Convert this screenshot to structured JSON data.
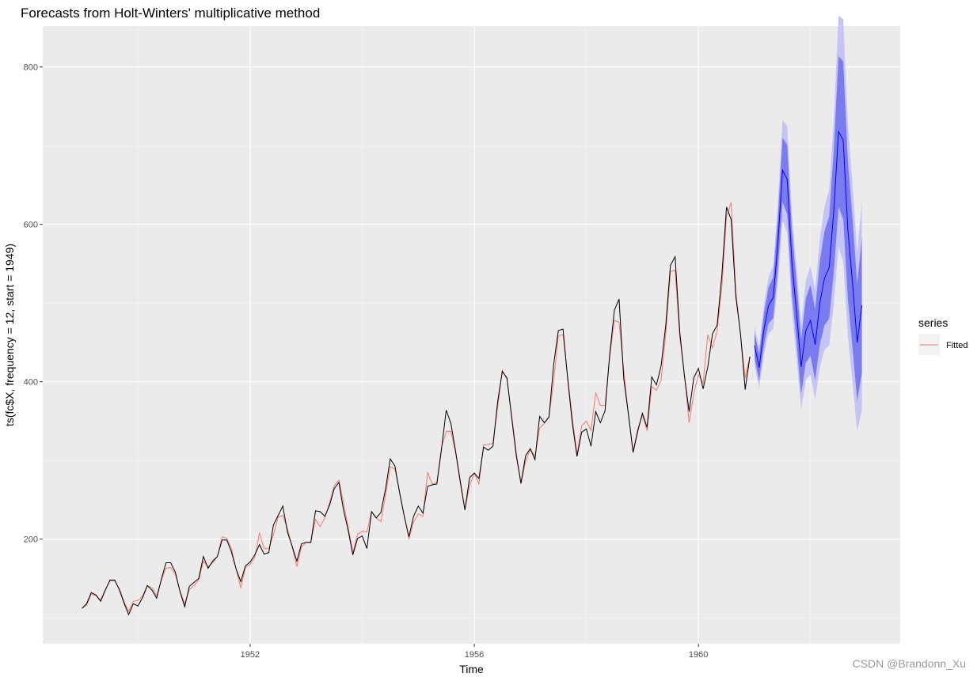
{
  "chart_data": {
    "type": "line",
    "title": "Forecasts from Holt-Winters' multiplicative method",
    "xlabel": "Time",
    "ylabel": "ts(fc$X, frequency = 12, start = 1949)",
    "xlim": [
      1948.3,
      1963.6
    ],
    "ylim": [
      67,
      852
    ],
    "x_ticks": [
      1952,
      1956,
      1960
    ],
    "y_ticks": [
      200,
      400,
      600,
      800
    ],
    "x_minor": [
      1950,
      1954,
      1958,
      1962
    ],
    "y_minor": [
      100,
      300,
      500,
      700
    ],
    "grid": true,
    "legend": {
      "title": "series",
      "position": "right",
      "entries": [
        "Fitted"
      ]
    },
    "observed": {
      "start": 1949,
      "frequency": 12,
      "color": "#000000",
      "values": [
        112,
        118,
        132,
        129,
        121,
        135,
        148,
        148,
        136,
        119,
        104,
        118,
        115,
        126,
        141,
        135,
        125,
        149,
        170,
        170,
        158,
        133,
        114,
        140,
        145,
        150,
        178,
        163,
        172,
        178,
        199,
        199,
        184,
        162,
        146,
        166,
        171,
        180,
        193,
        181,
        183,
        218,
        230,
        242,
        209,
        191,
        172,
        194,
        196,
        196,
        236,
        235,
        229,
        243,
        264,
        272,
        237,
        211,
        180,
        201,
        204,
        188,
        235,
        227,
        234,
        264,
        302,
        293,
        259,
        229,
        203,
        229,
        242,
        233,
        267,
        269,
        270,
        315,
        364,
        347,
        312,
        274,
        237,
        278,
        284,
        277,
        317,
        313,
        318,
        374,
        413,
        405,
        355,
        306,
        271,
        306,
        315,
        301,
        356,
        348,
        355,
        422,
        465,
        467,
        404,
        347,
        305,
        336,
        340,
        318,
        362,
        348,
        363,
        435,
        491,
        505,
        404,
        359,
        310,
        337,
        360,
        342,
        406,
        396,
        420,
        472,
        548,
        559,
        463,
        407,
        362,
        405,
        417,
        391,
        419,
        461,
        472,
        535,
        622,
        606,
        508,
        461,
        390,
        432
      ]
    },
    "fitted": {
      "name": "Fitted",
      "start": 1949,
      "frequency": 12,
      "color": "#f8766d",
      "values": [
        112,
        116,
        130,
        128,
        123,
        136,
        147,
        147,
        137,
        121,
        108,
        121,
        122,
        128,
        141,
        138,
        128,
        148,
        163,
        164,
        155,
        134,
        118,
        136,
        141,
        148,
        172,
        165,
        170,
        178,
        203,
        201,
        188,
        162,
        138,
        164,
        168,
        177,
        208,
        188,
        188,
        206,
        228,
        230,
        213,
        190,
        165,
        190,
        196,
        196,
        225,
        216,
        227,
        246,
        268,
        275,
        246,
        215,
        183,
        206,
        210,
        209,
        235,
        227,
        222,
        256,
        292,
        289,
        260,
        230,
        200,
        222,
        232,
        229,
        285,
        270,
        272,
        317,
        337,
        337,
        310,
        271,
        237,
        268,
        284,
        270,
        320,
        320,
        322,
        367,
        415,
        403,
        358,
        310,
        270,
        299,
        314,
        305,
        341,
        347,
        356,
        400,
        458,
        460,
        406,
        354,
        308,
        344,
        350,
        338,
        386,
        370,
        370,
        432,
        478,
        476,
        415,
        358,
        312,
        340,
        357,
        338,
        394,
        389,
        402,
        461,
        540,
        542,
        456,
        409,
        348,
        385,
        409,
        398,
        460,
        443,
        465,
        520,
        610,
        628,
        515,
        459,
        405,
        432
      ]
    },
    "forecast": {
      "start": 1961,
      "frequency": 12,
      "line_color": "#0000ff",
      "band_80_color": "#7b7bf0",
      "band_95_color": "#c5c5f5",
      "mean": [
        446,
        418,
        466,
        497,
        507,
        576,
        669,
        657,
        552,
        489,
        419,
        465,
        478,
        447,
        500,
        532,
        545,
        618,
        718,
        707,
        593,
        525,
        450,
        497
      ],
      "lo80": [
        430,
        401,
        446,
        474,
        481,
        543,
        628,
        613,
        512,
        451,
        384,
        424,
        433,
        402,
        447,
        472,
        480,
        540,
        622,
        607,
        505,
        443,
        376,
        411
      ],
      "hi80": [
        462,
        435,
        486,
        520,
        533,
        609,
        710,
        701,
        592,
        527,
        454,
        506,
        523,
        492,
        553,
        592,
        610,
        696,
        814,
        807,
        681,
        607,
        524,
        583
      ],
      "lo95": [
        421,
        392,
        434,
        461,
        467,
        525,
        605,
        589,
        491,
        430,
        365,
        402,
        409,
        377,
        418,
        441,
        446,
        499,
        571,
        553,
        458,
        399,
        336,
        365
      ],
      "hi95": [
        471,
        444,
        498,
        533,
        547,
        627,
        733,
        725,
        613,
        548,
        473,
        528,
        547,
        517,
        582,
        623,
        644,
        737,
        865,
        861,
        728,
        651,
        564,
        629
      ]
    }
  },
  "watermark": "CSDN @Brandonn_Xu"
}
